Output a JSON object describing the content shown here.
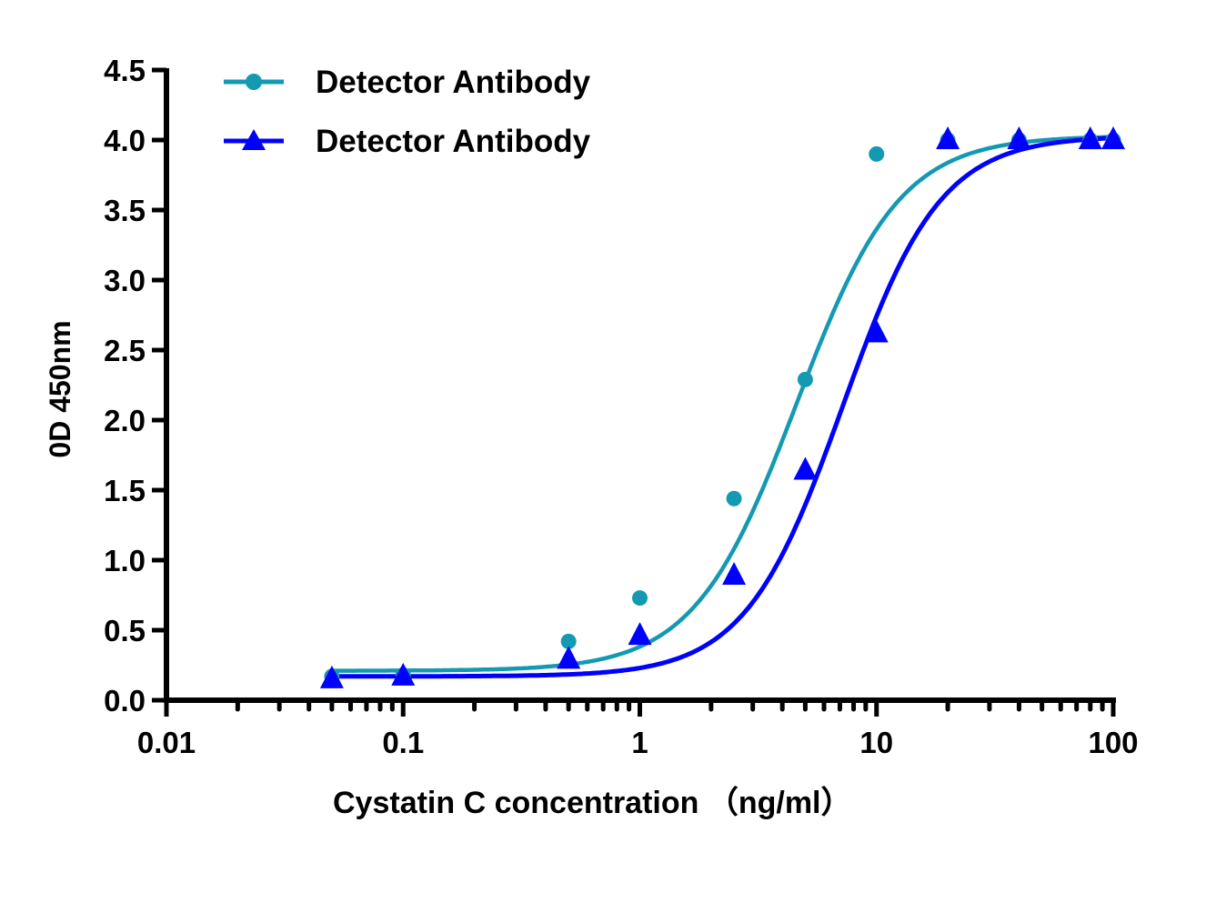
{
  "chart_data": {
    "type": "scatter",
    "title": "",
    "xlabel": "Cystatin C concentration  （ng/ml）",
    "ylabel": "0D 450nm",
    "xscale": "log",
    "xlim": [
      0.01,
      100
    ],
    "ylim": [
      0,
      4.5
    ],
    "xticks": [
      "0.01",
      "0.1",
      "1",
      "10",
      "100"
    ],
    "yticks": [
      "0.0",
      "0.5",
      "1.0",
      "1.5",
      "2.0",
      "2.5",
      "3.0",
      "3.5",
      "4.0",
      "4.5"
    ],
    "grid": false,
    "legend_position": "top-left",
    "x": [
      0.05,
      0.1,
      0.5,
      1,
      2.5,
      5,
      10,
      20,
      40,
      80,
      100
    ],
    "series": [
      {
        "name": "Detector Antibody",
        "marker": "circle",
        "color": "#1499b3",
        "values": [
          0.17,
          0.18,
          0.42,
          0.73,
          1.44,
          2.29,
          3.9,
          4.0,
          4.0,
          4.0,
          4.0
        ]
      },
      {
        "name": "Detector Antibody",
        "marker": "triangle",
        "color": "#0000ff",
        "values": [
          0.15,
          0.17,
          0.29,
          0.46,
          0.89,
          1.64,
          2.62,
          4.0,
          4.0,
          4.0,
          4.0
        ]
      }
    ]
  }
}
